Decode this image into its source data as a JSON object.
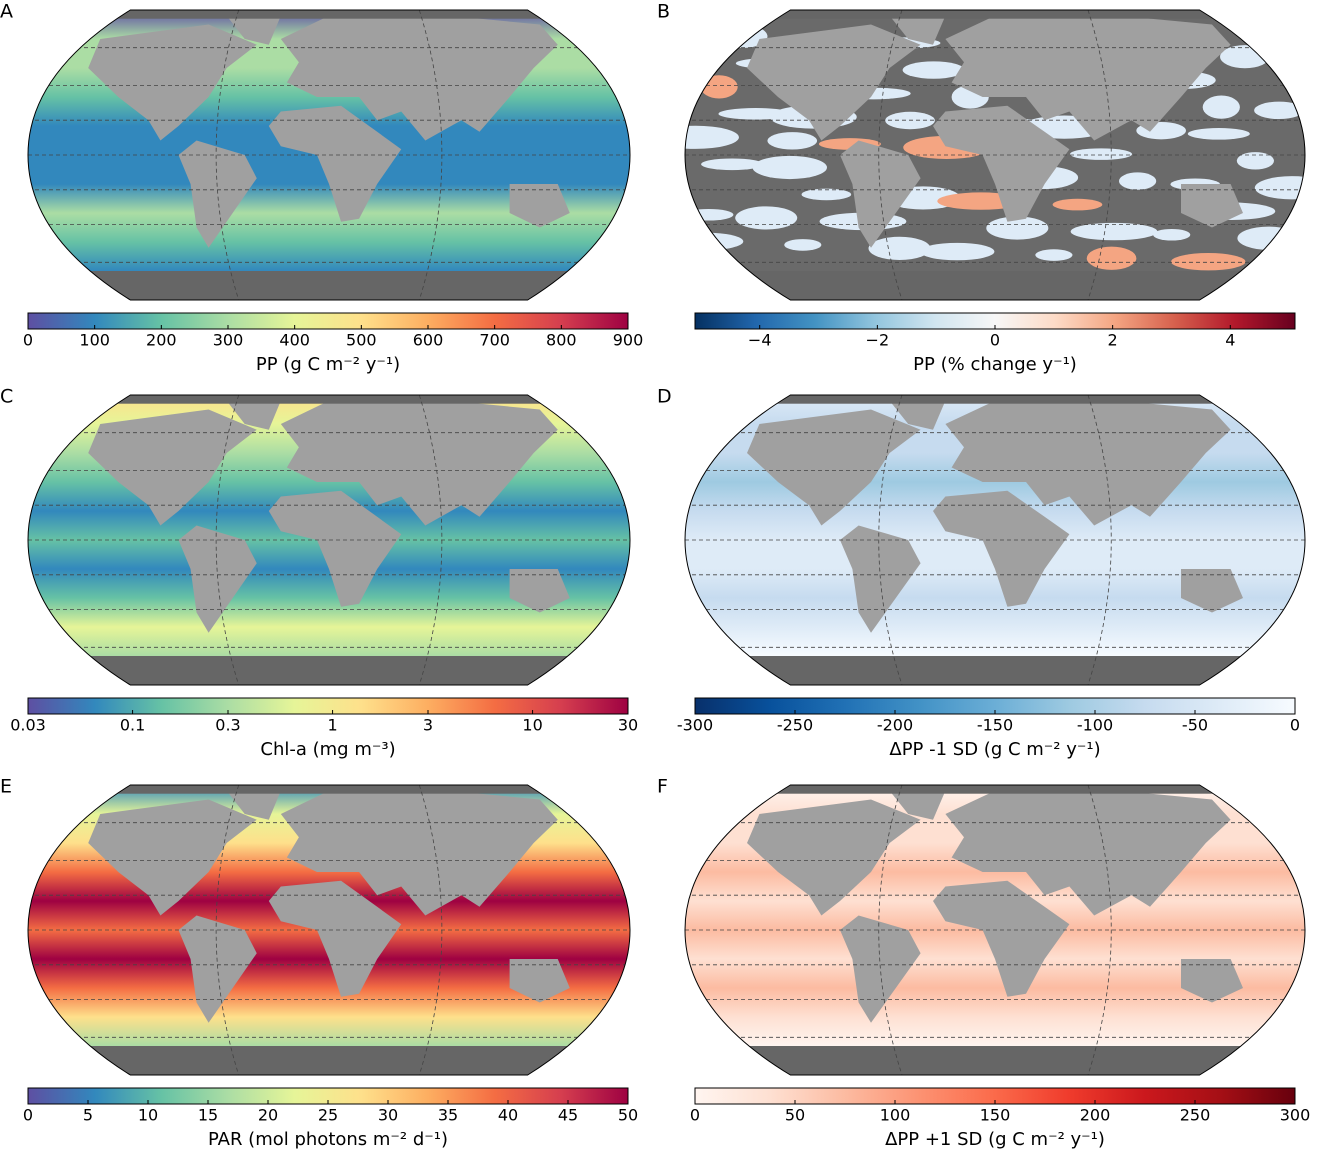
{
  "panels": [
    {
      "label": "A",
      "colorbar": {
        "label": "PP (g C m⁻² y⁻¹)",
        "lim": [
          0,
          900
        ],
        "ticks": [
          0,
          100,
          200,
          300,
          400,
          500,
          600,
          700,
          800,
          900
        ],
        "colors": [
          "#5e4fa2",
          "#3288bd",
          "#66c2a5",
          "#abdda4",
          "#e6f598",
          "#fee08b",
          "#fdae61",
          "#f46d43",
          "#d53e4f",
          "#9e0142"
        ]
      }
    },
    {
      "label": "B",
      "colorbar": {
        "label": "PP (% change y⁻¹)",
        "lim": [
          -5.1,
          5.1
        ],
        "ticks": [
          {
            "value": -4,
            "label": "−4"
          },
          {
            "value": -2,
            "label": "−2"
          },
          0,
          2,
          4
        ],
        "colors": [
          "#053061",
          "#2166ac",
          "#4393c3",
          "#92c5de",
          "#d1e5f0",
          "#f7f7f7",
          "#fddbc7",
          "#f4a582",
          "#d6604d",
          "#b2182b",
          "#67001f"
        ]
      }
    },
    {
      "label": "C",
      "colorbar": {
        "label": "Chl-a (mg m⁻³)",
        "lim": [
          0.03,
          30
        ],
        "log": true,
        "ticks": [
          0.03,
          0.1,
          0.3,
          1,
          3,
          10,
          30
        ],
        "colors": [
          "#5e4fa2",
          "#3288bd",
          "#66c2a5",
          "#abdda4",
          "#e6f598",
          "#fee08b",
          "#fdae61",
          "#f46d43",
          "#d53e4f",
          "#9e0142"
        ]
      }
    },
    {
      "label": "D",
      "colorbar": {
        "label": "ΔPP -1 SD (g C m⁻² y⁻¹)",
        "lim": [
          -300,
          0
        ],
        "ticks": [
          -300,
          -250,
          -200,
          -150,
          -100,
          -50,
          0
        ],
        "colors": [
          "#08306b",
          "#08519c",
          "#2171b5",
          "#4292c6",
          "#6baed6",
          "#9ecae1",
          "#c6dbef",
          "#deebf7",
          "#f7fbff"
        ]
      }
    },
    {
      "label": "E",
      "colorbar": {
        "label": "PAR (mol photons m⁻² d⁻¹)",
        "lim": [
          0,
          50
        ],
        "ticks": [
          0,
          5,
          10,
          15,
          20,
          25,
          30,
          35,
          40,
          45,
          50
        ],
        "colors": [
          "#5e4fa2",
          "#3288bd",
          "#66c2a5",
          "#abdda4",
          "#e6f598",
          "#fee08b",
          "#fdae61",
          "#f46d43",
          "#d53e4f",
          "#9e0142"
        ]
      }
    },
    {
      "label": "F",
      "colorbar": {
        "label": "ΔPP +1 SD (g C m⁻² y⁻¹)",
        "lim": [
          0,
          300
        ],
        "ticks": [
          0,
          50,
          100,
          150,
          200,
          250,
          300
        ],
        "colors": [
          "#fff5f0",
          "#fee0d2",
          "#fcbba1",
          "#fc9272",
          "#fb6a4a",
          "#ef3b2c",
          "#cb181d",
          "#a50f15",
          "#67000d"
        ]
      }
    }
  ]
}
